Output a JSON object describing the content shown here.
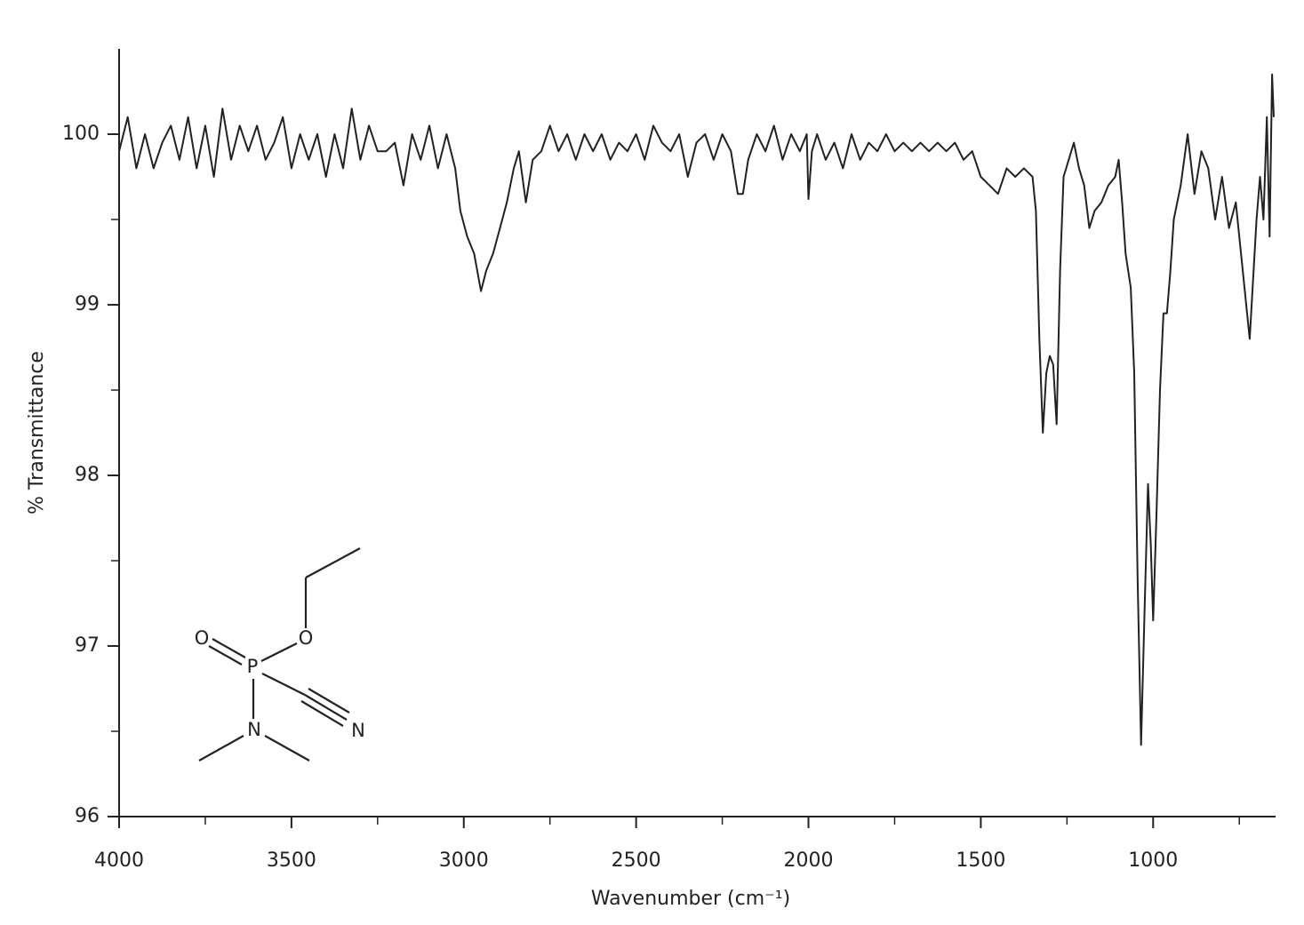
{
  "chart_data": {
    "type": "line",
    "xlabel": "Wavenumber (cm⁻¹)",
    "ylabel": "% Transmittance",
    "xlim": [
      4000,
      650
    ],
    "ylim": [
      96,
      100.5
    ],
    "xticks": [
      4000,
      3500,
      3000,
      2500,
      2000,
      1500,
      1000
    ],
    "xminor_ticks": [
      3750,
      3250,
      2750,
      2250,
      1750,
      1250,
      750
    ],
    "yticks": [
      96,
      97,
      98,
      99,
      100
    ],
    "yminor_ticks": [
      96.5,
      97.5,
      98.5,
      99.5
    ],
    "series": [
      {
        "color": "#222222",
        "x": [
          4000,
          3975,
          3950,
          3925,
          3900,
          3875,
          3850,
          3825,
          3800,
          3775,
          3750,
          3725,
          3700,
          3675,
          3650,
          3625,
          3600,
          3575,
          3550,
          3525,
          3500,
          3475,
          3450,
          3425,
          3400,
          3375,
          3350,
          3325,
          3300,
          3275,
          3250,
          3225,
          3200,
          3175,
          3150,
          3125,
          3100,
          3075,
          3050,
          3025,
          3010,
          2990,
          2970,
          2950,
          2935,
          2915,
          2895,
          2875,
          2855,
          2840,
          2820,
          2800,
          2775,
          2750,
          2725,
          2700,
          2675,
          2650,
          2625,
          2600,
          2575,
          2550,
          2525,
          2500,
          2475,
          2450,
          2425,
          2400,
          2375,
          2350,
          2325,
          2300,
          2275,
          2250,
          2225,
          2205,
          2190,
          2175,
          2150,
          2125,
          2100,
          2075,
          2050,
          2025,
          2005,
          2000,
          1990,
          1975,
          1950,
          1925,
          1900,
          1875,
          1850,
          1825,
          1800,
          1775,
          1750,
          1725,
          1700,
          1675,
          1650,
          1625,
          1600,
          1575,
          1550,
          1525,
          1500,
          1475,
          1450,
          1425,
          1400,
          1375,
          1350,
          1340,
          1330,
          1320,
          1310,
          1300,
          1290,
          1280,
          1270,
          1260,
          1245,
          1230,
          1215,
          1200,
          1185,
          1170,
          1150,
          1130,
          1110,
          1100,
          1090,
          1080,
          1065,
          1055,
          1045,
          1035,
          1025,
          1015,
          1007,
          1000,
          990,
          980,
          970,
          960,
          950,
          940,
          920,
          900,
          880,
          860,
          840,
          820,
          800,
          780,
          760,
          740,
          720,
          700,
          690,
          680,
          670,
          662,
          655,
          650
        ],
        "values": [
          99.9,
          100.1,
          99.8,
          100.0,
          99.8,
          99.95,
          100.05,
          99.85,
          100.1,
          99.8,
          100.05,
          99.75,
          100.15,
          99.85,
          100.05,
          99.9,
          100.05,
          99.85,
          99.95,
          100.1,
          99.8,
          100.0,
          99.85,
          100.0,
          99.75,
          100.0,
          99.8,
          100.15,
          99.85,
          100.05,
          99.9,
          99.9,
          99.95,
          99.7,
          100.0,
          99.85,
          100.05,
          99.8,
          100.0,
          99.8,
          99.55,
          99.4,
          99.3,
          99.08,
          99.2,
          99.3,
          99.45,
          99.6,
          99.8,
          99.9,
          99.6,
          99.85,
          99.9,
          100.05,
          99.9,
          100.0,
          99.85,
          100.0,
          99.9,
          100.0,
          99.85,
          99.95,
          99.9,
          100.0,
          99.85,
          100.05,
          99.95,
          99.9,
          100.0,
          99.75,
          99.95,
          100.0,
          99.85,
          100.0,
          99.9,
          99.65,
          99.65,
          99.85,
          100.0,
          99.9,
          100.05,
          99.85,
          100.0,
          99.9,
          100.0,
          99.62,
          99.9,
          100.0,
          99.85,
          99.95,
          99.8,
          100.0,
          99.85,
          99.95,
          99.9,
          100.0,
          99.9,
          99.95,
          99.9,
          99.95,
          99.9,
          99.95,
          99.9,
          99.95,
          99.85,
          99.9,
          99.75,
          99.7,
          99.65,
          99.8,
          99.75,
          99.8,
          99.75,
          99.55,
          98.8,
          98.25,
          98.6,
          98.7,
          98.65,
          98.3,
          99.2,
          99.75,
          99.85,
          99.95,
          99.8,
          99.7,
          99.45,
          99.55,
          99.6,
          99.7,
          99.75,
          99.85,
          99.6,
          99.3,
          99.1,
          98.6,
          97.4,
          96.42,
          97.2,
          97.95,
          97.6,
          97.15,
          97.8,
          98.5,
          98.95,
          98.95,
          99.2,
          99.5,
          99.7,
          100.0,
          99.65,
          99.9,
          99.8,
          99.5,
          99.75,
          99.45,
          99.6,
          99.2,
          98.8,
          99.5,
          99.75,
          99.5,
          100.1,
          99.4,
          100.35,
          100.1
        ]
      }
    ]
  },
  "structure": {
    "atoms": [
      "O",
      "P",
      "O",
      "N",
      "N"
    ]
  }
}
